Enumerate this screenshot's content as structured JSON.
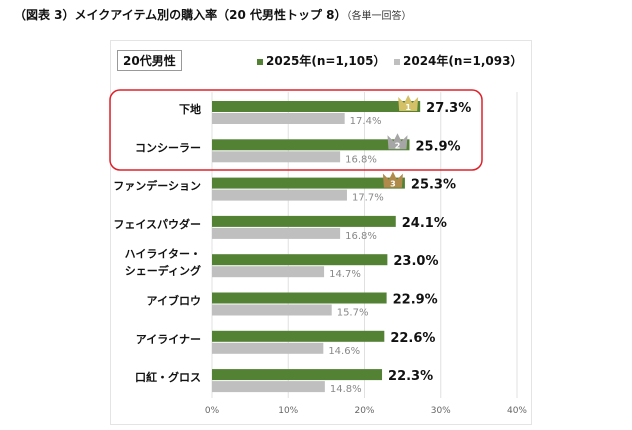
{
  "title": "（図表 3）メイクアイテム別の購入率（20 代男性トップ 8）",
  "title_note": "（各単一回答）",
  "chart_data": {
    "type": "bar",
    "orientation": "horizontal",
    "segment_label": "20代男性",
    "categories": [
      "下地",
      "コンシーラー",
      "ファンデーション",
      "フェイスパウダー",
      "ハイライター・\nシェーディング",
      "アイブロウ",
      "アイライナー",
      "口紅・グロス"
    ],
    "series": [
      {
        "name": "2025年(n=1,105）",
        "color": "#548235",
        "values": [
          27.3,
          25.9,
          25.3,
          24.1,
          23.0,
          22.9,
          22.6,
          22.3
        ],
        "labels": [
          "27.3%",
          "25.9%",
          "25.3%",
          "24.1%",
          "23.0%",
          "22.9%",
          "22.6%",
          "22.3%"
        ]
      },
      {
        "name": "2024年(n=1,093）",
        "color": "#bfbfbf",
        "values": [
          17.4,
          16.8,
          17.7,
          16.8,
          14.7,
          15.7,
          14.6,
          14.8
        ],
        "labels": [
          "17.4%",
          "16.8%",
          "17.7%",
          "16.8%",
          "14.7%",
          "15.7%",
          "14.6%",
          "14.8%"
        ]
      }
    ],
    "xlim": [
      0,
      40
    ],
    "xticks": [
      "0%",
      "10%",
      "20%",
      "30%",
      "40%"
    ],
    "grid": true,
    "legend": "top",
    "rank_badges": [
      {
        "rank": "1",
        "color": "#d4c066"
      },
      {
        "rank": "2",
        "color": "#a6a6a6"
      },
      {
        "rank": "3",
        "color": "#b08a4a"
      }
    ],
    "highlight_color": "#e0202a"
  }
}
